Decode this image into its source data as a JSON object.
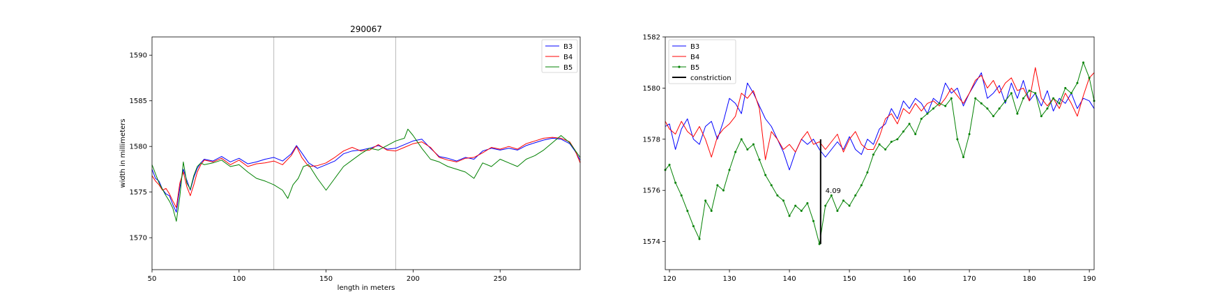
{
  "chart_data": [
    {
      "type": "line",
      "title": "290067",
      "xlabel": "length in meters",
      "ylabel": "width in millimeters",
      "xlim": [
        50,
        296
      ],
      "ylim": [
        1566.5,
        1592
      ],
      "xticks": [
        50,
        100,
        150,
        200,
        250
      ],
      "yticks": [
        1570,
        1575,
        1580,
        1585,
        1590
      ],
      "vlines": [
        120,
        190
      ],
      "legend": "top-right",
      "series": [
        {
          "name": "B3",
          "color": "#0000ff",
          "x": [
            50,
            52,
            54,
            56,
            58,
            60,
            62,
            64,
            66,
            68,
            70,
            72,
            74,
            76,
            78,
            80,
            85,
            90,
            95,
            100,
            105,
            110,
            115,
            120,
            125,
            130,
            133,
            136,
            140,
            145,
            150,
            155,
            160,
            165,
            170,
            175,
            180,
            185,
            190,
            195,
            200,
            205,
            210,
            215,
            220,
            225,
            230,
            235,
            240,
            245,
            250,
            255,
            260,
            265,
            270,
            275,
            280,
            285,
            290,
            293,
            296
          ],
          "y": [
            1577.5,
            1576.5,
            1576.2,
            1575.3,
            1574.8,
            1574.6,
            1573.6,
            1572.8,
            1575.5,
            1577.5,
            1576.3,
            1575.2,
            1576.6,
            1577.6,
            1578.2,
            1578.6,
            1578.4,
            1578.9,
            1578.3,
            1578.7,
            1578.1,
            1578.3,
            1578.6,
            1578.8,
            1578.4,
            1579.2,
            1580.1,
            1579.3,
            1578.2,
            1577.6,
            1578.0,
            1578.4,
            1579.2,
            1579.5,
            1579.6,
            1579.8,
            1580.1,
            1579.7,
            1579.8,
            1580.2,
            1580.6,
            1580.8,
            1579.8,
            1578.9,
            1578.7,
            1578.4,
            1578.8,
            1578.6,
            1579.5,
            1579.8,
            1579.6,
            1579.8,
            1579.6,
            1580.1,
            1580.4,
            1580.7,
            1580.9,
            1580.8,
            1580.3,
            1579.5,
            1578.5
          ]
        },
        {
          "name": "B4",
          "color": "#ff0000",
          "x": [
            50,
            52,
            54,
            56,
            58,
            60,
            62,
            64,
            66,
            68,
            70,
            72,
            74,
            76,
            78,
            80,
            85,
            90,
            95,
            100,
            105,
            110,
            115,
            120,
            125,
            130,
            133,
            136,
            140,
            145,
            150,
            155,
            160,
            165,
            170,
            175,
            180,
            185,
            190,
            195,
            200,
            205,
            210,
            215,
            220,
            225,
            230,
            235,
            240,
            245,
            250,
            255,
            260,
            265,
            270,
            275,
            280,
            285,
            290,
            293,
            296
          ],
          "y": [
            1576.8,
            1576.2,
            1575.8,
            1575.2,
            1575.4,
            1574.8,
            1574.0,
            1573.3,
            1576.0,
            1577.2,
            1575.6,
            1574.6,
            1575.8,
            1577.2,
            1578.0,
            1578.5,
            1578.3,
            1578.7,
            1578.0,
            1578.5,
            1577.8,
            1578.1,
            1578.2,
            1578.4,
            1578.0,
            1579.0,
            1580.0,
            1578.8,
            1577.8,
            1577.9,
            1578.2,
            1578.8,
            1579.5,
            1579.9,
            1579.5,
            1579.6,
            1580.2,
            1579.6,
            1579.5,
            1579.9,
            1580.3,
            1580.5,
            1579.9,
            1578.8,
            1578.5,
            1578.3,
            1578.7,
            1578.8,
            1579.3,
            1579.9,
            1579.7,
            1580.0,
            1579.7,
            1580.3,
            1580.6,
            1580.9,
            1581.0,
            1580.9,
            1580.5,
            1579.6,
            1578.2
          ]
        },
        {
          "name": "B5",
          "color": "#008000",
          "x": [
            50,
            52,
            54,
            56,
            58,
            60,
            62,
            64,
            66,
            68,
            70,
            72,
            74,
            76,
            78,
            80,
            85,
            90,
            95,
            100,
            105,
            110,
            115,
            120,
            125,
            128,
            131,
            134,
            137,
            140,
            145,
            150,
            155,
            160,
            165,
            170,
            175,
            180,
            185,
            190,
            195,
            197,
            200,
            205,
            210,
            215,
            220,
            225,
            230,
            235,
            240,
            245,
            250,
            255,
            260,
            265,
            270,
            275,
            280,
            285,
            290,
            293,
            296
          ],
          "y": [
            1578.0,
            1577.0,
            1576.0,
            1575.3,
            1574.6,
            1574.0,
            1573.2,
            1571.8,
            1574.5,
            1578.3,
            1576.0,
            1575.3,
            1576.8,
            1577.8,
            1578.2,
            1578.0,
            1578.2,
            1578.5,
            1577.8,
            1578.0,
            1577.2,
            1576.5,
            1576.2,
            1575.8,
            1575.2,
            1574.3,
            1575.8,
            1576.5,
            1577.8,
            1578.0,
            1576.5,
            1575.2,
            1576.5,
            1577.8,
            1578.5,
            1579.2,
            1579.8,
            1579.6,
            1580.1,
            1580.6,
            1580.9,
            1581.9,
            1581.2,
            1579.8,
            1578.6,
            1578.3,
            1577.8,
            1577.5,
            1577.2,
            1576.5,
            1578.2,
            1577.8,
            1578.6,
            1578.2,
            1577.8,
            1578.6,
            1579.0,
            1579.6,
            1580.4,
            1581.2,
            1580.4,
            1579.6,
            1578.8
          ]
        }
      ]
    },
    {
      "type": "line",
      "title": "",
      "xlabel": "",
      "ylabel": "",
      "xlim": [
        119.3,
        190.8
      ],
      "ylim": [
        1572.9,
        1582
      ],
      "xticks": [
        120,
        130,
        140,
        150,
        160,
        170,
        180,
        190
      ],
      "yticks": [
        1574,
        1576,
        1578,
        1580,
        1582
      ],
      "legend": "top-left",
      "series": [
        {
          "name": "B3",
          "color": "#0000ff",
          "x": [
            119.3,
            120,
            121,
            122,
            123,
            124,
            125,
            126,
            127,
            128,
            129,
            130,
            131,
            132,
            133,
            134,
            135,
            136,
            137,
            138,
            139,
            140,
            141,
            142,
            143,
            144,
            145,
            146,
            147,
            148,
            149,
            150,
            151,
            152,
            153,
            154,
            155,
            156,
            157,
            158,
            159,
            160,
            161,
            162,
            163,
            164,
            165,
            166,
            167,
            168,
            169,
            170,
            171,
            172,
            173,
            174,
            175,
            176,
            177,
            178,
            179,
            180,
            181,
            182,
            183,
            184,
            185,
            186,
            187,
            188,
            189,
            190,
            190.8
          ],
          "y": [
            1578.5,
            1578.6,
            1577.6,
            1578.4,
            1578.8,
            1578.0,
            1577.8,
            1578.5,
            1578.7,
            1578.0,
            1578.7,
            1579.6,
            1579.4,
            1579.0,
            1580.2,
            1579.8,
            1579.3,
            1578.8,
            1578.5,
            1578.0,
            1577.5,
            1576.8,
            1577.5,
            1578.0,
            1577.8,
            1578.0,
            1577.6,
            1577.3,
            1577.6,
            1577.9,
            1577.6,
            1578.1,
            1577.6,
            1577.4,
            1578.0,
            1577.8,
            1578.4,
            1578.6,
            1579.2,
            1578.8,
            1579.5,
            1579.2,
            1579.6,
            1579.4,
            1579.0,
            1579.6,
            1579.4,
            1580.2,
            1579.8,
            1580.0,
            1579.3,
            1579.8,
            1580.2,
            1580.6,
            1579.6,
            1579.8,
            1580.1,
            1579.4,
            1580.2,
            1579.6,
            1580.3,
            1579.5,
            1579.8,
            1579.3,
            1579.9,
            1579.1,
            1579.6,
            1579.4,
            1579.8,
            1579.2,
            1579.6,
            1579.5,
            1579.2
          ]
        },
        {
          "name": "B4",
          "color": "#ff0000",
          "x": [
            119.3,
            120,
            121,
            122,
            123,
            124,
            125,
            126,
            127,
            128,
            129,
            130,
            131,
            132,
            133,
            134,
            135,
            136,
            137,
            138,
            139,
            140,
            141,
            142,
            143,
            144,
            145,
            146,
            147,
            148,
            149,
            150,
            151,
            152,
            153,
            154,
            155,
            156,
            157,
            158,
            159,
            160,
            161,
            162,
            163,
            164,
            165,
            166,
            167,
            168,
            169,
            170,
            171,
            172,
            173,
            174,
            175,
            176,
            177,
            178,
            179,
            180,
            181,
            182,
            183,
            184,
            185,
            186,
            187,
            188,
            189,
            190,
            190.8
          ],
          "y": [
            1578.7,
            1578.4,
            1578.2,
            1578.7,
            1578.3,
            1578.1,
            1578.5,
            1578.0,
            1577.3,
            1578.1,
            1578.4,
            1578.6,
            1578.9,
            1579.8,
            1579.6,
            1579.9,
            1579.2,
            1577.2,
            1578.3,
            1578.0,
            1577.6,
            1577.8,
            1577.5,
            1578.0,
            1578.3,
            1577.8,
            1577.9,
            1577.6,
            1577.9,
            1578.2,
            1577.5,
            1578.0,
            1578.3,
            1577.8,
            1577.6,
            1577.6,
            1578.1,
            1578.8,
            1579.0,
            1578.6,
            1579.2,
            1579.0,
            1579.4,
            1579.1,
            1579.4,
            1579.5,
            1579.3,
            1579.6,
            1580.0,
            1579.7,
            1579.4,
            1579.8,
            1580.3,
            1580.5,
            1580.0,
            1580.3,
            1579.8,
            1580.2,
            1580.4,
            1579.9,
            1580.0,
            1579.5,
            1580.8,
            1579.6,
            1579.3,
            1579.6,
            1579.2,
            1579.8,
            1579.4,
            1578.9,
            1579.7,
            1580.4,
            1580.6
          ]
        },
        {
          "name": "B5",
          "color": "#008000",
          "x": [
            119.3,
            120,
            121,
            122,
            123,
            124,
            125,
            126,
            127,
            128,
            129,
            130,
            131,
            132,
            133,
            134,
            135,
            136,
            137,
            138,
            139,
            140,
            141,
            142,
            143,
            144,
            145,
            146,
            147,
            148,
            149,
            150,
            151,
            152,
            153,
            154,
            155,
            156,
            157,
            158,
            159,
            160,
            161,
            162,
            163,
            164,
            165,
            166,
            167,
            168,
            169,
            170,
            171,
            172,
            173,
            174,
            175,
            176,
            177,
            178,
            179,
            180,
            181,
            182,
            183,
            184,
            185,
            186,
            187,
            188,
            189,
            190,
            190.8
          ],
          "y": [
            1576.8,
            1577.0,
            1576.3,
            1575.8,
            1575.2,
            1574.6,
            1574.1,
            1575.6,
            1575.2,
            1576.2,
            1576.0,
            1576.8,
            1577.5,
            1578.0,
            1577.6,
            1577.8,
            1577.2,
            1576.6,
            1576.2,
            1575.8,
            1575.6,
            1575.0,
            1575.4,
            1575.2,
            1575.5,
            1574.8,
            1573.9,
            1575.4,
            1575.8,
            1575.2,
            1575.6,
            1575.4,
            1575.8,
            1576.2,
            1576.7,
            1577.4,
            1577.8,
            1577.6,
            1577.9,
            1578.0,
            1578.3,
            1578.6,
            1578.2,
            1578.8,
            1579.0,
            1579.2,
            1579.4,
            1579.3,
            1579.6,
            1578.0,
            1577.3,
            1578.2,
            1579.6,
            1579.4,
            1579.2,
            1578.9,
            1579.2,
            1579.5,
            1579.8,
            1579.0,
            1579.6,
            1579.9,
            1579.8,
            1578.9,
            1579.2,
            1579.6,
            1579.4,
            1580.0,
            1579.8,
            1580.2,
            1581.0,
            1580.4,
            1579.5
          ]
        }
      ],
      "constriction": {
        "name": "constriction",
        "color": "#000000",
        "x": 145.2,
        "y_top": 1578.0,
        "y_bottom": 1573.9,
        "label": "4.09",
        "label_x": 146.0,
        "label_y": 1575.9
      }
    }
  ]
}
